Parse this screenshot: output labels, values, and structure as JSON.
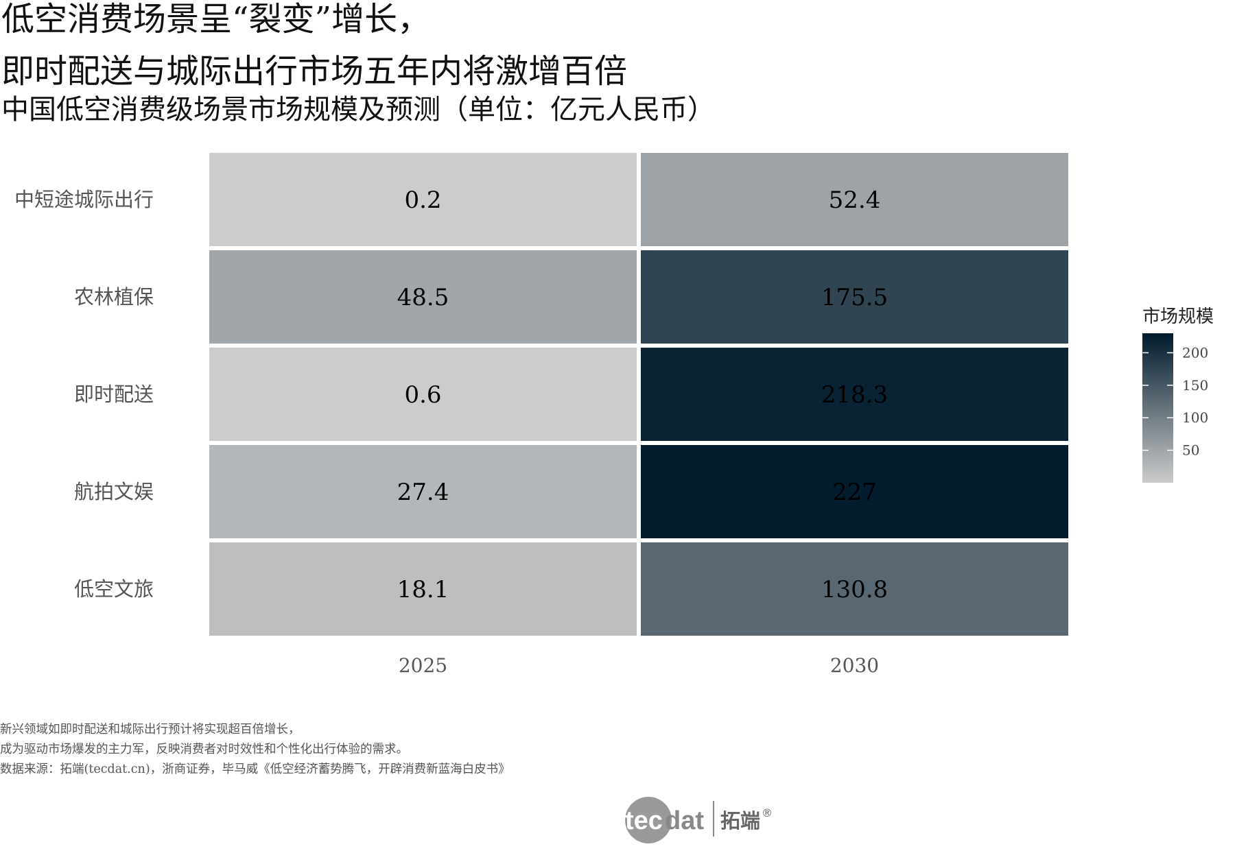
{
  "title_lines": [
    "低空消费场景呈“裂变”增长，",
    "即时配送与城际出行市场五年内将激增百倍"
  ],
  "subtitle": "中国低空消费级场景市场规模及预测（单位：亿元人民币）",
  "chart_data": {
    "type": "heatmap",
    "x": [
      "2025",
      "2030"
    ],
    "y": [
      "中短途城际出行",
      "农林植保",
      "即时配送",
      "航拍文娱",
      "低空文旅"
    ],
    "values": [
      [
        0.2,
        52.4
      ],
      [
        48.5,
        175.5
      ],
      [
        0.6,
        218.3
      ],
      [
        27.4,
        227
      ],
      [
        18.1,
        130.8
      ]
    ],
    "labels": [
      [
        "0.2",
        "52.4"
      ],
      [
        "48.5",
        "175.5"
      ],
      [
        "0.6",
        "218.3"
      ],
      [
        "27.4",
        "227"
      ],
      [
        "18.1",
        "130.8"
      ]
    ],
    "color_low": "#cccccc",
    "color_high": "#001a2c",
    "value_range": [
      0,
      230
    ],
    "legend": {
      "title": "市场规模",
      "ticks": [
        50,
        100,
        150,
        200
      ],
      "position": "right"
    }
  },
  "captions": [
    "新兴领域如即时配送和城际出行预计将实现超百倍增长，",
    "成为驱动市场爆发的主力军，反映消费者对时效性和个性化出行体验的需求。",
    "数据来源：拓端(tecdat.cn)，浙商证券，毕马威《低空经济蓄势腾飞，开辟消费新蓝海白皮书》"
  ],
  "logo": {
    "text_a": "tec",
    "text_b": "dat",
    "cn": "拓端",
    "mark": "®"
  }
}
